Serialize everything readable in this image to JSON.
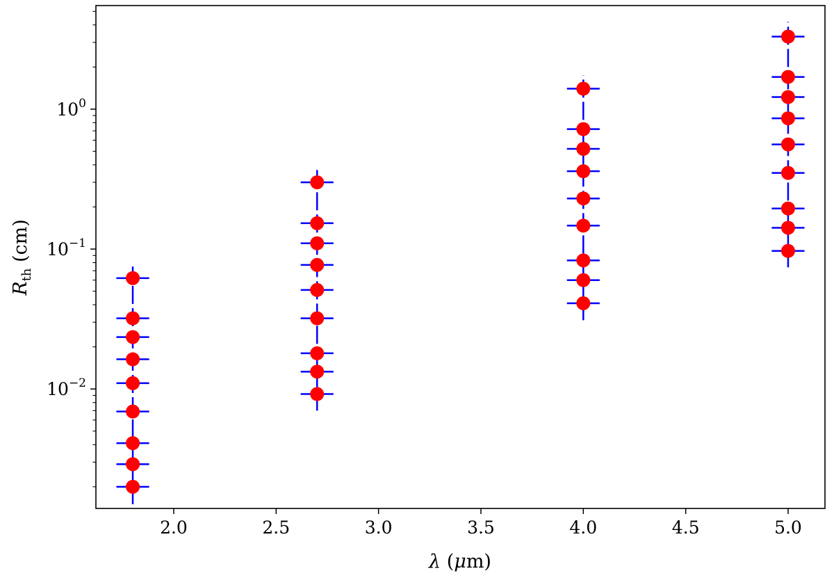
{
  "chart_data": {
    "type": "scatter",
    "title": "",
    "xlabel": {
      "symbol": "λ",
      "unit_open": " (",
      "unit_mu": "μ",
      "unit_rest": "m)"
    },
    "ylabel": {
      "symbol": "R",
      "subscript": "th",
      "unit": " (cm)"
    },
    "x_scale": "linear",
    "y_scale": "log",
    "xlim": [
      1.62,
      5.18
    ],
    "ylim": [
      0.0014,
      5.5
    ],
    "grid": false,
    "legend": "none",
    "x_ticks": [
      {
        "value": 2.0,
        "label": "2.0"
      },
      {
        "value": 2.5,
        "label": "2.5"
      },
      {
        "value": 3.0,
        "label": "3.0"
      },
      {
        "value": 3.5,
        "label": "3.5"
      },
      {
        "value": 4.0,
        "label": "4.0"
      },
      {
        "value": 4.5,
        "label": "4.5"
      },
      {
        "value": 5.0,
        "label": "5.0"
      }
    ],
    "y_ticks": [
      {
        "value": 0.01,
        "base": "10",
        "exp": "−2"
      },
      {
        "value": 0.1,
        "base": "10",
        "exp": "−1"
      },
      {
        "value": 1,
        "base": "10",
        "exp": "0"
      }
    ],
    "marker_color": "#ff0000",
    "errorbar_color": "#0000ff",
    "x_error": 0.08,
    "points": [
      {
        "x": 1.8,
        "y": 0.062
      },
      {
        "x": 1.8,
        "y": 0.032
      },
      {
        "x": 1.8,
        "y": 0.0235
      },
      {
        "x": 1.8,
        "y": 0.0163
      },
      {
        "x": 1.8,
        "y": 0.011
      },
      {
        "x": 1.8,
        "y": 0.0069
      },
      {
        "x": 1.8,
        "y": 0.0041
      },
      {
        "x": 1.8,
        "y": 0.0029
      },
      {
        "x": 1.8,
        "y": 0.002
      },
      {
        "x": 2.7,
        "y": 0.3
      },
      {
        "x": 2.7,
        "y": 0.153
      },
      {
        "x": 2.7,
        "y": 0.11
      },
      {
        "x": 2.7,
        "y": 0.077
      },
      {
        "x": 2.7,
        "y": 0.051
      },
      {
        "x": 2.7,
        "y": 0.032
      },
      {
        "x": 2.7,
        "y": 0.018
      },
      {
        "x": 2.7,
        "y": 0.0133
      },
      {
        "x": 2.7,
        "y": 0.0092
      },
      {
        "x": 4.0,
        "y": 1.4
      },
      {
        "x": 4.0,
        "y": 0.72
      },
      {
        "x": 4.0,
        "y": 0.52
      },
      {
        "x": 4.0,
        "y": 0.36
      },
      {
        "x": 4.0,
        "y": 0.23
      },
      {
        "x": 4.0,
        "y": 0.147
      },
      {
        "x": 4.0,
        "y": 0.083
      },
      {
        "x": 4.0,
        "y": 0.06
      },
      {
        "x": 4.0,
        "y": 0.041
      },
      {
        "x": 5.0,
        "y": 3.3
      },
      {
        "x": 5.0,
        "y": 1.7
      },
      {
        "x": 5.0,
        "y": 1.22
      },
      {
        "x": 5.0,
        "y": 0.86
      },
      {
        "x": 5.0,
        "y": 0.56
      },
      {
        "x": 5.0,
        "y": 0.35
      },
      {
        "x": 5.0,
        "y": 0.195
      },
      {
        "x": 5.0,
        "y": 0.142
      },
      {
        "x": 5.0,
        "y": 0.097
      }
    ],
    "y_error_bands": [
      {
        "x": 1.8,
        "ylow": 0.0015,
        "yhigh": 0.075
      },
      {
        "x": 2.7,
        "ylow": 0.007,
        "yhigh": 0.37
      },
      {
        "x": 4.0,
        "ylow": 0.031,
        "yhigh": 1.75
      },
      {
        "x": 5.0,
        "ylow": 0.074,
        "yhigh": 4.2
      }
    ]
  }
}
